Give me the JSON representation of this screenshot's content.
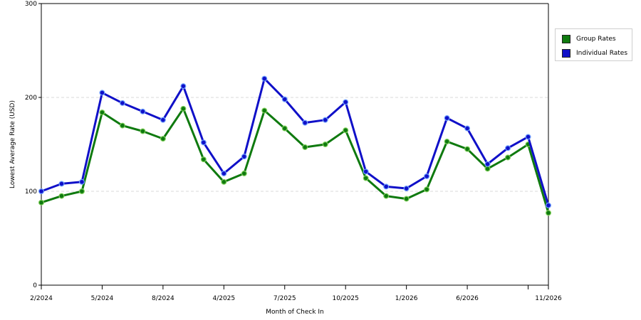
{
  "chart_data": {
    "type": "line",
    "title": "",
    "xlabel": "Month of Check In",
    "ylabel": "Lowest Average Rate (USD)",
    "ylim": [
      0,
      300
    ],
    "yticks": [
      "0",
      "100",
      "200",
      "300"
    ],
    "gridlines_y": [
      100,
      200
    ],
    "x_tick_labels": [
      {
        "index": 0,
        "label": "2/2024"
      },
      {
        "index": 3,
        "label": "5/2024"
      },
      {
        "index": 6,
        "label": "8/2024"
      },
      {
        "index": 9,
        "label": "4/2025"
      },
      {
        "index": 12,
        "label": "7/2025"
      },
      {
        "index": 15,
        "label": "10/2025"
      },
      {
        "index": 18,
        "label": "1/2026"
      },
      {
        "index": 21,
        "label": "6/2026"
      },
      {
        "index": 24,
        "label": ""
      },
      {
        "index": 25,
        "label": "11/2026"
      }
    ],
    "legend_placement": "right",
    "series": [
      {
        "name": "Group Rates",
        "color": "#0f7a0f",
        "values": [
          88,
          95,
          100,
          184,
          170,
          164,
          156,
          188,
          134,
          110,
          119,
          186,
          167,
          147,
          150,
          165,
          114,
          95,
          92,
          102,
          153,
          145,
          124,
          136,
          150,
          77
        ]
      },
      {
        "name": "Individual Rates",
        "color": "#1010c8",
        "values": [
          100,
          108,
          110,
          205,
          194,
          185,
          176,
          212,
          152,
          119,
          137,
          220,
          198,
          173,
          176,
          195,
          121,
          105,
          103,
          116,
          178,
          167,
          129,
          146,
          158,
          85
        ]
      }
    ]
  }
}
